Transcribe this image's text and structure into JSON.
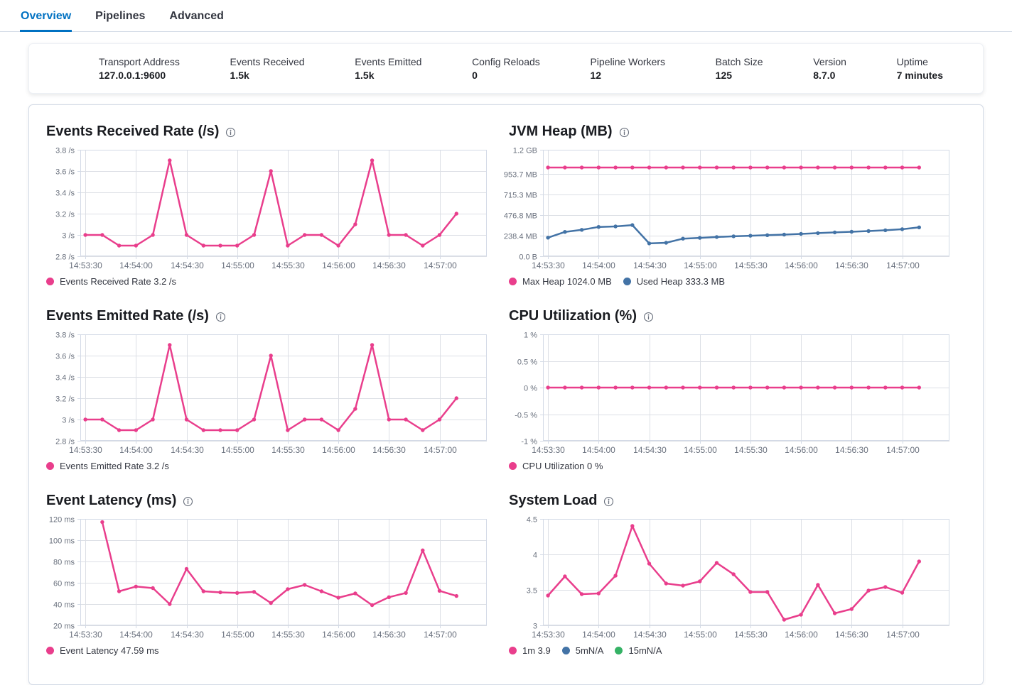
{
  "tabs": [
    {
      "label": "Overview",
      "active": true
    },
    {
      "label": "Pipelines",
      "active": false
    },
    {
      "label": "Advanced",
      "active": false
    }
  ],
  "stats": [
    {
      "label": "Transport Address",
      "value": "127.0.0.1:9600"
    },
    {
      "label": "Events Received",
      "value": "1.5k"
    },
    {
      "label": "Events Emitted",
      "value": "1.5k"
    },
    {
      "label": "Config Reloads",
      "value": "0"
    },
    {
      "label": "Pipeline Workers",
      "value": "12"
    },
    {
      "label": "Batch Size",
      "value": "125"
    },
    {
      "label": "Version",
      "value": "8.7.0"
    },
    {
      "label": "Uptime",
      "value": "7 minutes"
    }
  ],
  "colors": {
    "accent_blue": "#0071c2",
    "series_pink": "#e93e8c",
    "series_blue": "#4373a6",
    "series_green": "#35b265",
    "grid": "#dcdfe5",
    "axis_border": "#d3dae6",
    "axis_text": "#69707d"
  },
  "chart_data": [
    {
      "type": "line",
      "title": "Events Received Rate (/s)",
      "ylim": [
        2.8,
        3.8
      ],
      "y_ticks": [
        {
          "value": 2.8,
          "label": "2.8 /s"
        },
        {
          "value": 3.0,
          "label": "3 /s"
        },
        {
          "value": 3.2,
          "label": "3.2 /s"
        },
        {
          "value": 3.4,
          "label": "3.4 /s"
        },
        {
          "value": 3.6,
          "label": "3.6 /s"
        },
        {
          "value": 3.8,
          "label": "3.8 /s"
        }
      ],
      "x_tick_labels": [
        "14:53:30",
        "14:54:00",
        "14:54:30",
        "14:55:00",
        "14:55:30",
        "14:56:00",
        "14:56:30",
        "14:57:00"
      ],
      "x_domain": [
        -3,
        238
      ],
      "x_start": 0,
      "x_step": 10,
      "series": [
        {
          "name": "Events Received Rate",
          "color": "#e93e8c",
          "values": [
            3.0,
            3.0,
            2.9,
            2.9,
            3.0,
            3.7,
            3.0,
            2.9,
            2.9,
            2.9,
            3.0,
            3.6,
            2.9,
            3.0,
            3.0,
            2.9,
            3.1,
            3.7,
            3.0,
            3.0,
            2.9,
            3.0,
            3.2
          ]
        }
      ],
      "legend": [
        {
          "label": "Events Received Rate 3.2 /s",
          "color": "#e93e8c"
        }
      ]
    },
    {
      "type": "line",
      "title": "JVM Heap (MB)",
      "ylim": [
        0,
        1228.8
      ],
      "y_ticks": [
        {
          "value": 0,
          "label": "0.0 B"
        },
        {
          "value": 238.4,
          "label": "238.4 MB"
        },
        {
          "value": 476.8,
          "label": "476.8 MB"
        },
        {
          "value": 715.3,
          "label": "715.3 MB"
        },
        {
          "value": 953.7,
          "label": "953.7 MB"
        },
        {
          "value": 1228.8,
          "label": "1.2 GB"
        }
      ],
      "x_tick_labels": [
        "14:53:30",
        "14:54:00",
        "14:54:30",
        "14:55:00",
        "14:55:30",
        "14:56:00",
        "14:56:30",
        "14:57:00"
      ],
      "x_domain": [
        -3,
        238
      ],
      "x_start": 0,
      "x_step": 10,
      "series": [
        {
          "name": "Max Heap",
          "color": "#e93e8c",
          "values": [
            1024,
            1024,
            1024,
            1024,
            1024,
            1024,
            1024,
            1024,
            1024,
            1024,
            1024,
            1024,
            1024,
            1024,
            1024,
            1024,
            1024,
            1024,
            1024,
            1024,
            1024,
            1024,
            1024
          ]
        },
        {
          "name": "Used Heap",
          "color": "#4373a6",
          "values": [
            215,
            281,
            305,
            338,
            344,
            360,
            148,
            156,
            203,
            212,
            222,
            230,
            237,
            243,
            250,
            258,
            267,
            275,
            283,
            291,
            300,
            312,
            333.3
          ]
        }
      ],
      "legend": [
        {
          "label": "Max Heap 1024.0 MB",
          "color": "#e93e8c"
        },
        {
          "label": "Used Heap 333.3 MB",
          "color": "#4373a6"
        }
      ]
    },
    {
      "type": "line",
      "title": "Events Emitted Rate (/s)",
      "ylim": [
        2.8,
        3.8
      ],
      "y_ticks": [
        {
          "value": 2.8,
          "label": "2.8 /s"
        },
        {
          "value": 3.0,
          "label": "3 /s"
        },
        {
          "value": 3.2,
          "label": "3.2 /s"
        },
        {
          "value": 3.4,
          "label": "3.4 /s"
        },
        {
          "value": 3.6,
          "label": "3.6 /s"
        },
        {
          "value": 3.8,
          "label": "3.8 /s"
        }
      ],
      "x_tick_labels": [
        "14:53:30",
        "14:54:00",
        "14:54:30",
        "14:55:00",
        "14:55:30",
        "14:56:00",
        "14:56:30",
        "14:57:00"
      ],
      "x_domain": [
        -3,
        238
      ],
      "x_start": 0,
      "x_step": 10,
      "series": [
        {
          "name": "Events Emitted Rate",
          "color": "#e93e8c",
          "values": [
            3.0,
            3.0,
            2.9,
            2.9,
            3.0,
            3.7,
            3.0,
            2.9,
            2.9,
            2.9,
            3.0,
            3.6,
            2.9,
            3.0,
            3.0,
            2.9,
            3.1,
            3.7,
            3.0,
            3.0,
            2.9,
            3.0,
            3.2
          ]
        }
      ],
      "legend": [
        {
          "label": "Events Emitted Rate 3.2 /s",
          "color": "#e93e8c"
        }
      ]
    },
    {
      "type": "line",
      "title": "CPU Utilization (%)",
      "ylim": [
        -1,
        1
      ],
      "y_ticks": [
        {
          "value": -1,
          "label": "-1 %"
        },
        {
          "value": -0.5,
          "label": "-0.5 %"
        },
        {
          "value": 0,
          "label": "0 %"
        },
        {
          "value": 0.5,
          "label": "0.5 %"
        },
        {
          "value": 1,
          "label": "1 %"
        }
      ],
      "x_tick_labels": [
        "14:53:30",
        "14:54:00",
        "14:54:30",
        "14:55:00",
        "14:55:30",
        "14:56:00",
        "14:56:30",
        "14:57:00"
      ],
      "x_domain": [
        -3,
        238
      ],
      "x_start": 0,
      "x_step": 10,
      "series": [
        {
          "name": "CPU Utilization",
          "color": "#e93e8c",
          "values": [
            0,
            0,
            0,
            0,
            0,
            0,
            0,
            0,
            0,
            0,
            0,
            0,
            0,
            0,
            0,
            0,
            0,
            0,
            0,
            0,
            0,
            0,
            0
          ]
        }
      ],
      "legend": [
        {
          "label": "CPU Utilization 0 %",
          "color": "#e93e8c"
        }
      ]
    },
    {
      "type": "line",
      "title": "Event Latency (ms)",
      "ylim": [
        20,
        120
      ],
      "y_ticks": [
        {
          "value": 20,
          "label": "20 ms"
        },
        {
          "value": 40,
          "label": "40 ms"
        },
        {
          "value": 60,
          "label": "60 ms"
        },
        {
          "value": 80,
          "label": "80 ms"
        },
        {
          "value": 100,
          "label": "100 ms"
        },
        {
          "value": 120,
          "label": "120 ms"
        }
      ],
      "x_tick_labels": [
        "14:53:30",
        "14:54:00",
        "14:54:30",
        "14:55:00",
        "14:55:30",
        "14:56:00",
        "14:56:30",
        "14:57:00"
      ],
      "x_domain": [
        -3,
        238
      ],
      "x_start": 10,
      "x_step": 10,
      "series": [
        {
          "name": "Event Latency",
          "color": "#e93e8c",
          "values": [
            117,
            52,
            56.5,
            55,
            40,
            73,
            52,
            51,
            50.5,
            51.5,
            41,
            54,
            58,
            52,
            46,
            50,
            39,
            46.5,
            50.5,
            90.5,
            52.5,
            47.59
          ]
        }
      ],
      "legend": [
        {
          "label": "Event Latency 47.59 ms",
          "color": "#e93e8c"
        }
      ]
    },
    {
      "type": "line",
      "title": "System Load",
      "ylim": [
        3,
        4.5
      ],
      "y_ticks": [
        {
          "value": 3,
          "label": "3"
        },
        {
          "value": 3.5,
          "label": "3.5"
        },
        {
          "value": 4,
          "label": "4"
        },
        {
          "value": 4.5,
          "label": "4.5"
        }
      ],
      "x_tick_labels": [
        "14:53:30",
        "14:54:00",
        "14:54:30",
        "14:55:00",
        "14:55:30",
        "14:56:00",
        "14:56:30",
        "14:57:00"
      ],
      "x_domain": [
        -3,
        238
      ],
      "x_start": 0,
      "x_step": 10,
      "series": [
        {
          "name": "1m",
          "color": "#e93e8c",
          "values": [
            3.42,
            3.69,
            3.44,
            3.45,
            3.7,
            4.4,
            3.87,
            3.59,
            3.56,
            3.62,
            3.88,
            3.72,
            3.47,
            3.47,
            3.08,
            3.15,
            3.57,
            3.17,
            3.23,
            3.49,
            3.54,
            3.46,
            3.9
          ]
        }
      ],
      "legend": [
        {
          "label": "1m 3.9",
          "color": "#e93e8c"
        },
        {
          "label": "5mN/A",
          "color": "#4373a6"
        },
        {
          "label": "15mN/A",
          "color": "#35b265"
        }
      ]
    }
  ]
}
